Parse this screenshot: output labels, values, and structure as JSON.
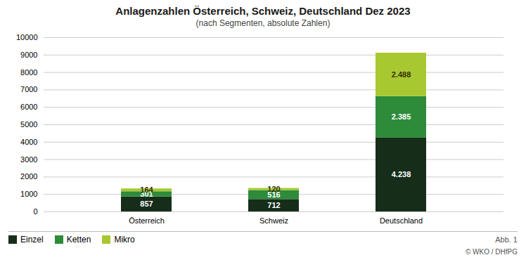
{
  "chart_data": {
    "type": "bar",
    "stacked": true,
    "title": "Anlagenzahlen Österreich, Schweiz, Deutschland Dez 2023",
    "subtitle": "(nach Segmenten, absolute Zahlen)",
    "caption": "Abb. 1",
    "source": "© WKO / DHfPG",
    "categories": [
      "Österreich",
      "Schweiz",
      "Deutschland"
    ],
    "series": [
      {
        "name": "Einzel",
        "color": "#162d1a",
        "values": [
          857,
          712,
          4238
        ],
        "value_labels": [
          "857",
          "712",
          "4.238"
        ]
      },
      {
        "name": "Ketten",
        "color": "#2d8b3a",
        "values": [
          301,
          516,
          2385
        ],
        "value_labels": [
          "301",
          "516",
          "2.385"
        ]
      },
      {
        "name": "Mikro",
        "color": "#a8c832",
        "values": [
          164,
          120,
          2488
        ],
        "value_labels": [
          "164",
          "120",
          "2.488"
        ]
      }
    ],
    "ylim": [
      0,
      10000
    ],
    "yticks": [
      0,
      1000,
      2000,
      3000,
      4000,
      5000,
      6000,
      7000,
      8000,
      9000,
      10000
    ],
    "grid": true,
    "legend": "bottom",
    "data_labels": true
  }
}
